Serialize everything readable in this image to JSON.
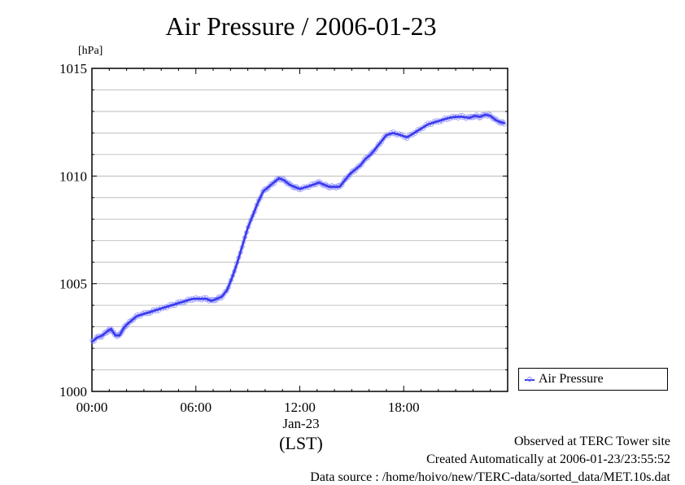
{
  "chart_data": {
    "type": "line",
    "title": "Air Pressure / 2006-01-23",
    "ylabel": "[hPa]",
    "xlabel": "(LST)",
    "x_date_label": "Jan-23",
    "ylim": [
      1000,
      1015
    ],
    "xlim_hours": [
      0,
      24
    ],
    "y_ticks": [
      1000,
      1005,
      1010,
      1015
    ],
    "x_ticks": [
      "00:00",
      "06:00",
      "12:00",
      "18:00"
    ],
    "grid": true,
    "legend_position": "right",
    "series": [
      {
        "name": "Air Pressure",
        "color": "#3a3aee",
        "marker_color": "#8888ff",
        "hours": [
          0.0,
          0.3,
          0.6,
          0.9,
          1.1,
          1.35,
          1.6,
          1.8,
          2.0,
          2.3,
          2.6,
          3.0,
          3.4,
          3.8,
          4.2,
          4.6,
          5.0,
          5.4,
          5.8,
          6.2,
          6.6,
          6.9,
          7.2,
          7.5,
          7.8,
          8.1,
          8.4,
          8.7,
          9.0,
          9.3,
          9.6,
          9.9,
          10.2,
          10.5,
          10.8,
          11.1,
          11.4,
          11.7,
          12.0,
          12.4,
          12.8,
          13.1,
          13.4,
          13.7,
          14.0,
          14.3,
          14.6,
          14.9,
          15.2,
          15.5,
          15.8,
          16.1,
          16.4,
          16.7,
          17.0,
          17.4,
          17.8,
          18.2,
          18.6,
          19.0,
          19.4,
          19.8,
          20.2,
          20.6,
          21.0,
          21.4,
          21.8,
          22.1,
          22.4,
          22.7,
          23.0,
          23.3,
          23.6,
          23.85
        ],
        "values": [
          1002.3,
          1002.5,
          1002.6,
          1002.8,
          1002.9,
          1002.6,
          1002.6,
          1002.9,
          1003.1,
          1003.3,
          1003.5,
          1003.6,
          1003.7,
          1003.8,
          1003.9,
          1004.0,
          1004.1,
          1004.2,
          1004.3,
          1004.3,
          1004.3,
          1004.2,
          1004.3,
          1004.4,
          1004.7,
          1005.3,
          1006.0,
          1006.8,
          1007.6,
          1008.2,
          1008.8,
          1009.3,
          1009.5,
          1009.7,
          1009.9,
          1009.8,
          1009.6,
          1009.5,
          1009.4,
          1009.5,
          1009.6,
          1009.7,
          1009.6,
          1009.5,
          1009.5,
          1009.5,
          1009.8,
          1010.1,
          1010.3,
          1010.5,
          1010.8,
          1011.0,
          1011.3,
          1011.6,
          1011.9,
          1012.0,
          1011.9,
          1011.8,
          1012.0,
          1012.2,
          1012.4,
          1012.5,
          1012.6,
          1012.7,
          1012.75,
          1012.75,
          1012.7,
          1012.8,
          1012.75,
          1012.85,
          1012.8,
          1012.6,
          1012.5,
          1012.45
        ]
      }
    ]
  },
  "footer": {
    "observed": "Observed at TERC Tower site",
    "created": "Created Automatically at 2006-01-23/23:55:52",
    "source": "Data source : /home/hoivo/new/TERC-data/sorted_data/MET.10s.dat"
  }
}
